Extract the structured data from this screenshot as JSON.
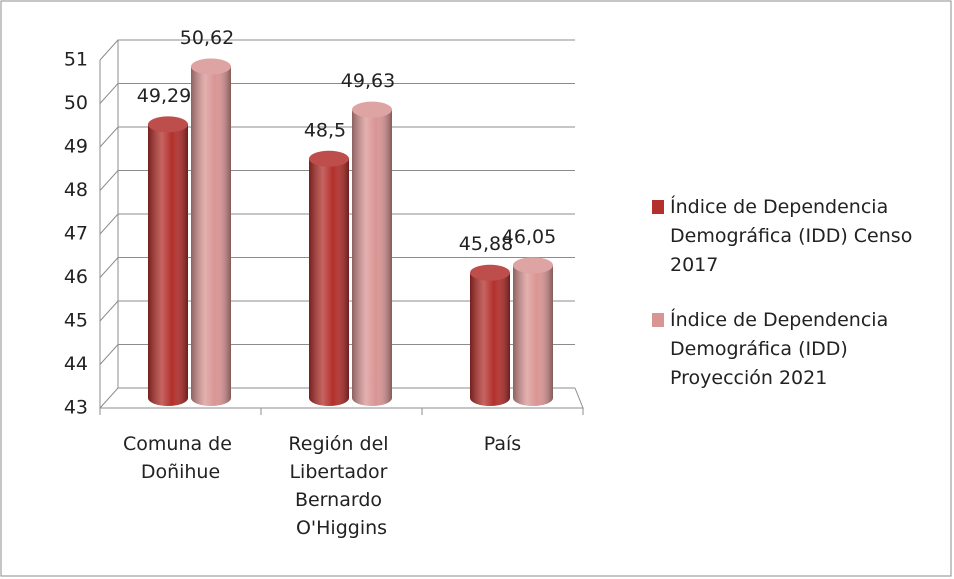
{
  "chart_data": {
    "type": "bar3d",
    "categories": [
      "Comuna de Doñihue",
      "Región del Libertador Bernardo O'Higgins",
      "País"
    ],
    "series": [
      {
        "name": "Índice de Dependencia Demográfica (IDD) Censo 2017",
        "color": "#b3302c",
        "values": [
          49.29,
          48.5,
          45.88
        ],
        "value_labels": [
          "49,29",
          "48,5",
          "45,88"
        ]
      },
      {
        "name": "Índice de Dependencia Demográfica (IDD) Proyección 2021",
        "color": "#d99594",
        "values": [
          50.62,
          49.63,
          46.05
        ],
        "value_labels": [
          "50,62",
          "49,63",
          "46,05"
        ]
      }
    ],
    "ylim": [
      43,
      51
    ],
    "yticks": [
      43,
      44,
      45,
      46,
      47,
      48,
      49,
      50,
      51
    ],
    "grid": true,
    "legend": "right"
  }
}
